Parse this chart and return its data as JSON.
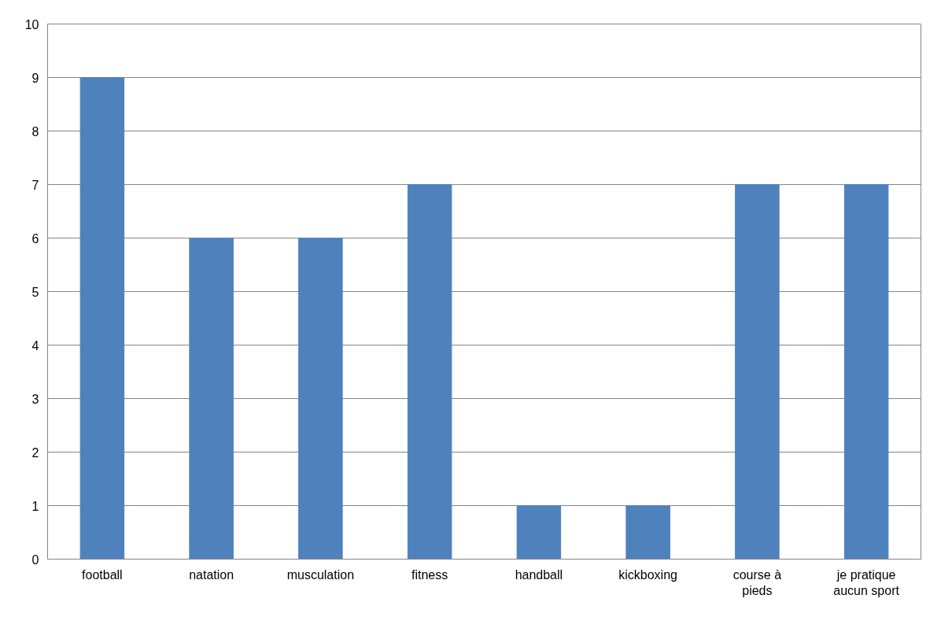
{
  "chart_data": {
    "type": "bar",
    "categories": [
      "football",
      "natation",
      "musculation",
      "fitness",
      "handball",
      "kickboxing",
      "course à pieds",
      "je pratique aucun sport"
    ],
    "values": [
      9,
      6,
      6,
      7,
      1,
      1,
      7,
      7
    ],
    "color": "#4f81bd",
    "ylim": [
      0,
      10
    ],
    "yticks": [
      0,
      1,
      2,
      3,
      4,
      5,
      6,
      7,
      8,
      9,
      10
    ],
    "grid": "y"
  }
}
